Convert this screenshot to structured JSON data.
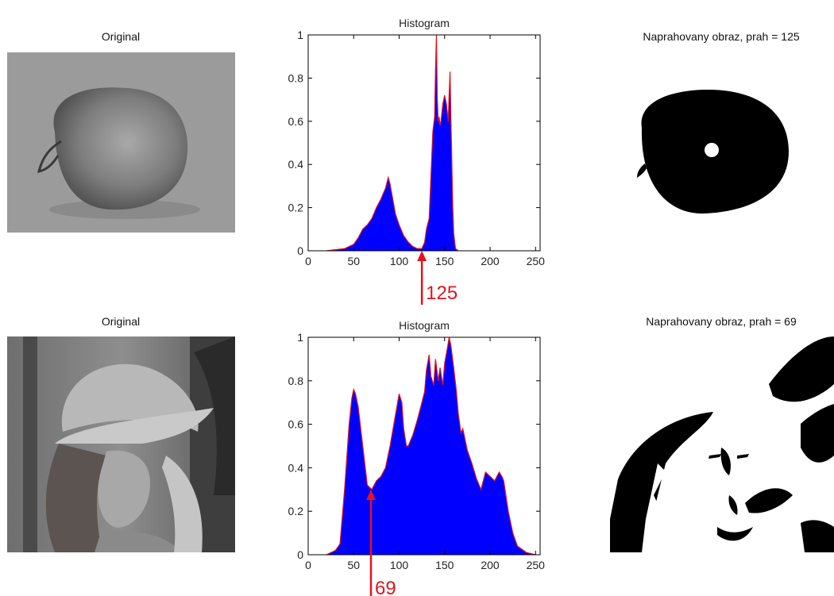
{
  "panels": [
    {
      "original_title": "Original",
      "threshold_title": "Naprahovany obraz, prah = 125",
      "chart_data": {
        "type": "area",
        "title": "Histogram",
        "xlim": [
          0,
          255
        ],
        "ylim": [
          0,
          1
        ],
        "xticks": [
          0,
          50,
          100,
          150,
          200,
          250
        ],
        "yticks": [
          0,
          0.2,
          0.4,
          0.6,
          0.8,
          1
        ],
        "xtick_labels": [
          "0",
          "50",
          "100",
          "150",
          "200",
          "250"
        ],
        "ytick_labels": [
          "0",
          "0.2",
          "0.4",
          "0.6",
          "0.8",
          "1"
        ],
        "x": [
          20,
          30,
          40,
          50,
          55,
          60,
          65,
          70,
          75,
          80,
          85,
          88,
          90,
          93,
          96,
          100,
          105,
          110,
          115,
          120,
          125,
          128,
          130,
          133,
          135,
          137,
          139,
          140,
          141,
          142,
          143,
          144,
          145,
          146,
          147,
          148,
          150,
          152,
          154,
          155,
          156,
          157,
          158,
          159,
          160,
          162,
          165
        ],
        "y": [
          0,
          0.005,
          0.01,
          0.03,
          0.06,
          0.1,
          0.12,
          0.15,
          0.2,
          0.24,
          0.29,
          0.34,
          0.31,
          0.24,
          0.17,
          0.12,
          0.07,
          0.04,
          0.02,
          0.01,
          0.01,
          0.04,
          0.1,
          0.15,
          0.35,
          0.55,
          0.62,
          0.84,
          1.0,
          0.7,
          0.6,
          0.62,
          0.58,
          0.6,
          0.64,
          0.68,
          0.72,
          0.68,
          0.6,
          0.73,
          0.83,
          0.6,
          0.4,
          0.2,
          0.08,
          0.01,
          0
        ],
        "threshold": 125,
        "threshold_label": "125",
        "series_color": "#0000ff",
        "outline_color": "#e0141e",
        "grid": false
      }
    },
    {
      "original_title": "Original",
      "threshold_title": "Naprahovany obraz, prah = 69",
      "chart_data": {
        "type": "area",
        "title": "Histogram",
        "xlim": [
          0,
          255
        ],
        "ylim": [
          0,
          1
        ],
        "xticks": [
          0,
          50,
          100,
          150,
          200,
          250
        ],
        "yticks": [
          0,
          0.2,
          0.4,
          0.6,
          0.8,
          1
        ],
        "xtick_labels": [
          "0",
          "50",
          "100",
          "150",
          "200",
          "250"
        ],
        "ytick_labels": [
          "0",
          "0.2",
          "0.4",
          "0.6",
          "0.8",
          "1"
        ],
        "x": [
          20,
          25,
          30,
          35,
          40,
          45,
          48,
          50,
          52,
          55,
          60,
          65,
          70,
          75,
          80,
          85,
          90,
          95,
          100,
          103,
          105,
          108,
          110,
          115,
          120,
          125,
          128,
          130,
          133,
          135,
          138,
          140,
          143,
          145,
          148,
          150,
          153,
          155,
          157,
          160,
          163,
          165,
          168,
          170,
          175,
          180,
          185,
          190,
          195,
          200,
          205,
          210,
          213,
          215,
          220,
          225,
          230,
          240,
          250
        ],
        "y": [
          0,
          0.01,
          0.02,
          0.05,
          0.3,
          0.6,
          0.72,
          0.76,
          0.74,
          0.68,
          0.5,
          0.32,
          0.3,
          0.34,
          0.36,
          0.4,
          0.5,
          0.62,
          0.74,
          0.7,
          0.58,
          0.5,
          0.5,
          0.55,
          0.62,
          0.7,
          0.75,
          0.85,
          0.92,
          0.82,
          0.78,
          0.9,
          0.8,
          0.86,
          0.78,
          0.88,
          0.95,
          1.0,
          0.96,
          0.86,
          0.75,
          0.65,
          0.56,
          0.58,
          0.48,
          0.42,
          0.35,
          0.3,
          0.38,
          0.36,
          0.34,
          0.38,
          0.36,
          0.34,
          0.2,
          0.1,
          0.04,
          0.01,
          0
        ],
        "threshold": 69,
        "threshold_label": "69",
        "series_color": "#0000ff",
        "outline_color": "#e0141e",
        "grid": false
      }
    }
  ]
}
